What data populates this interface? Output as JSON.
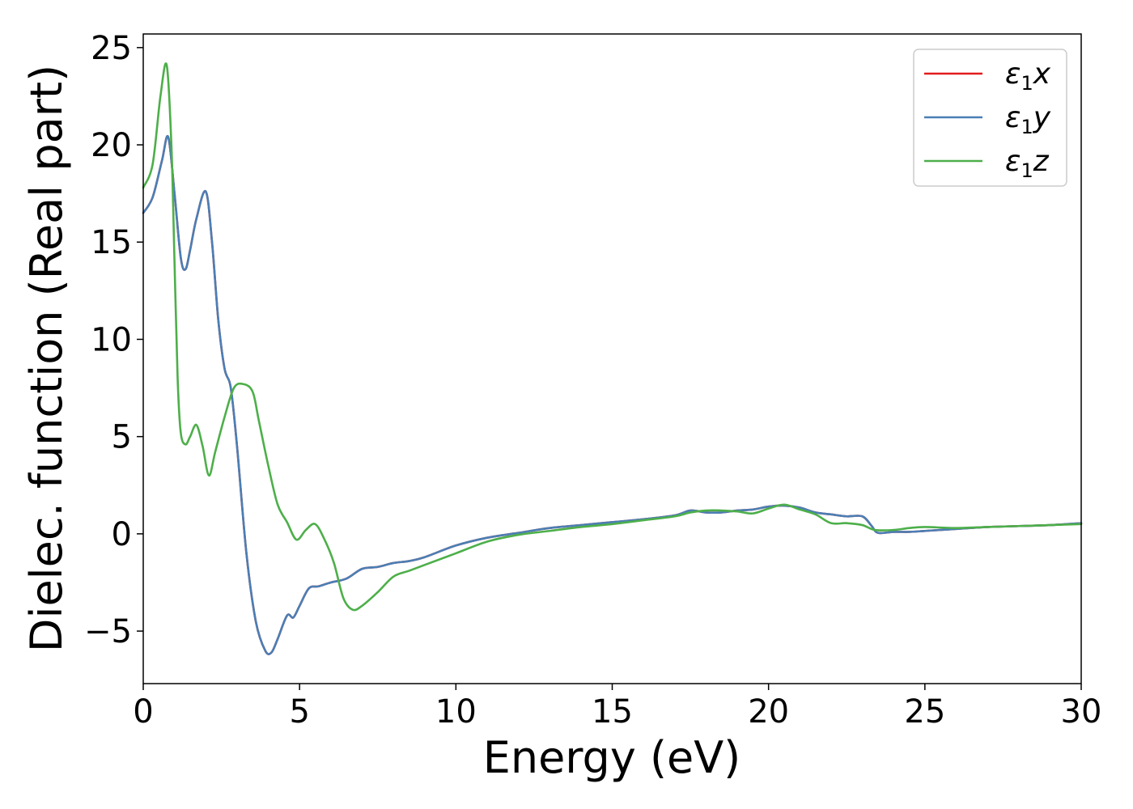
{
  "chart_data": {
    "type": "line",
    "xlabel": "Energy (eV)",
    "ylabel": "Dielec. function (Real part)",
    "xlim": [
      0,
      30
    ],
    "ylim": [
      -7.7,
      25.7
    ],
    "x_ticks": [
      0,
      5,
      10,
      15,
      20,
      25,
      30
    ],
    "x_tick_labels": [
      "0",
      "5",
      "10",
      "15",
      "20",
      "25",
      "30"
    ],
    "y_ticks": [
      -5,
      0,
      5,
      10,
      15,
      20,
      25
    ],
    "y_tick_labels": [
      "−5",
      "0",
      "5",
      "10",
      "15",
      "20",
      "25"
    ],
    "grid": false,
    "legend_position": "top-right",
    "series": [
      {
        "name": "x",
        "legend_symbol": "ε",
        "legend_subscript": "1",
        "legend_var": "x",
        "color": "#e41a1c",
        "x": [
          0,
          0.3,
          0.6,
          0.8,
          1.0,
          1.2,
          1.35,
          1.5,
          1.7,
          2.0,
          2.2,
          2.4,
          2.6,
          2.8,
          3.0,
          3.3,
          3.6,
          3.9,
          4.1,
          4.3,
          4.6,
          4.8,
          5.0,
          5.3,
          5.6,
          6.0,
          6.5,
          7.0,
          7.5,
          8.0,
          8.5,
          9.0,
          10,
          11,
          12,
          13,
          14,
          15,
          16,
          17,
          17.5,
          18,
          18.5,
          19,
          19.5,
          20,
          20.5,
          21,
          21.5,
          22,
          22.5,
          23,
          23.3,
          23.5,
          24,
          24.5,
          25,
          26,
          27,
          28,
          29,
          30
        ],
        "y": [
          16.5,
          17.3,
          19.2,
          20.4,
          17.5,
          14.2,
          13.6,
          14.6,
          16.2,
          17.6,
          15.0,
          11.0,
          8.5,
          7.5,
          4.5,
          -1.0,
          -4.5,
          -6.0,
          -6.1,
          -5.4,
          -4.2,
          -4.3,
          -3.7,
          -2.8,
          -2.7,
          -2.5,
          -2.3,
          -1.8,
          -1.7,
          -1.5,
          -1.4,
          -1.2,
          -0.6,
          -0.2,
          0.05,
          0.3,
          0.45,
          0.6,
          0.75,
          0.95,
          1.2,
          1.1,
          1.1,
          1.2,
          1.25,
          1.4,
          1.45,
          1.35,
          1.1,
          1.0,
          0.9,
          0.9,
          0.4,
          0.05,
          0.1,
          0.1,
          0.15,
          0.25,
          0.35,
          0.4,
          0.45,
          0.55
        ]
      },
      {
        "name": "y",
        "legend_symbol": "ε",
        "legend_subscript": "1",
        "legend_var": "y",
        "color": "#4a7fb5",
        "x": [
          0,
          0.3,
          0.6,
          0.8,
          1.0,
          1.2,
          1.35,
          1.5,
          1.7,
          2.0,
          2.2,
          2.4,
          2.6,
          2.8,
          3.0,
          3.3,
          3.6,
          3.9,
          4.1,
          4.3,
          4.6,
          4.8,
          5.0,
          5.3,
          5.6,
          6.0,
          6.5,
          7.0,
          7.5,
          8.0,
          8.5,
          9.0,
          10,
          11,
          12,
          13,
          14,
          15,
          16,
          17,
          17.5,
          18,
          18.5,
          19,
          19.5,
          20,
          20.5,
          21,
          21.5,
          22,
          22.5,
          23,
          23.3,
          23.5,
          24,
          24.5,
          25,
          26,
          27,
          28,
          29,
          30
        ],
        "y": [
          16.5,
          17.3,
          19.2,
          20.4,
          17.5,
          14.2,
          13.6,
          14.6,
          16.2,
          17.6,
          15.0,
          11.0,
          8.5,
          7.5,
          4.5,
          -1.0,
          -4.5,
          -6.0,
          -6.1,
          -5.4,
          -4.2,
          -4.3,
          -3.7,
          -2.8,
          -2.7,
          -2.5,
          -2.3,
          -1.8,
          -1.7,
          -1.5,
          -1.4,
          -1.2,
          -0.6,
          -0.2,
          0.05,
          0.3,
          0.45,
          0.6,
          0.75,
          0.95,
          1.2,
          1.1,
          1.1,
          1.2,
          1.25,
          1.4,
          1.45,
          1.35,
          1.1,
          1.0,
          0.9,
          0.9,
          0.4,
          0.05,
          0.1,
          0.1,
          0.15,
          0.25,
          0.35,
          0.4,
          0.45,
          0.55
        ]
      },
      {
        "name": "z",
        "legend_symbol": "ε",
        "legend_subscript": "1",
        "legend_var": "z",
        "color": "#4daf4a",
        "x": [
          0,
          0.3,
          0.55,
          0.75,
          0.9,
          1.0,
          1.1,
          1.2,
          1.35,
          1.5,
          1.7,
          1.9,
          2.1,
          2.3,
          2.6,
          2.9,
          3.2,
          3.5,
          3.7,
          4.0,
          4.3,
          4.6,
          4.9,
          5.2,
          5.5,
          5.8,
          6.1,
          6.4,
          6.7,
          7.0,
          7.5,
          8.0,
          8.5,
          9.0,
          10,
          11,
          12,
          13,
          14,
          15,
          16,
          17,
          17.5,
          18,
          18.5,
          19,
          19.5,
          20,
          20.5,
          21,
          21.5,
          22,
          22.5,
          23,
          23.4,
          24,
          24.5,
          25,
          26,
          27,
          28,
          29,
          30
        ],
        "y": [
          17.8,
          19.0,
          22.5,
          24.1,
          20.0,
          14.0,
          8.0,
          5.2,
          4.6,
          5.0,
          5.6,
          4.5,
          3.0,
          4.2,
          6.0,
          7.5,
          7.7,
          7.3,
          5.8,
          3.5,
          1.5,
          0.6,
          -0.3,
          0.2,
          0.5,
          -0.3,
          -1.5,
          -3.3,
          -3.9,
          -3.7,
          -3.0,
          -2.2,
          -1.9,
          -1.6,
          -1.0,
          -0.4,
          -0.05,
          0.15,
          0.35,
          0.5,
          0.7,
          0.9,
          1.1,
          1.2,
          1.2,
          1.15,
          1.05,
          1.3,
          1.5,
          1.25,
          1.0,
          0.55,
          0.55,
          0.45,
          0.2,
          0.2,
          0.3,
          0.35,
          0.3,
          0.35,
          0.4,
          0.45,
          0.5
        ]
      }
    ]
  }
}
